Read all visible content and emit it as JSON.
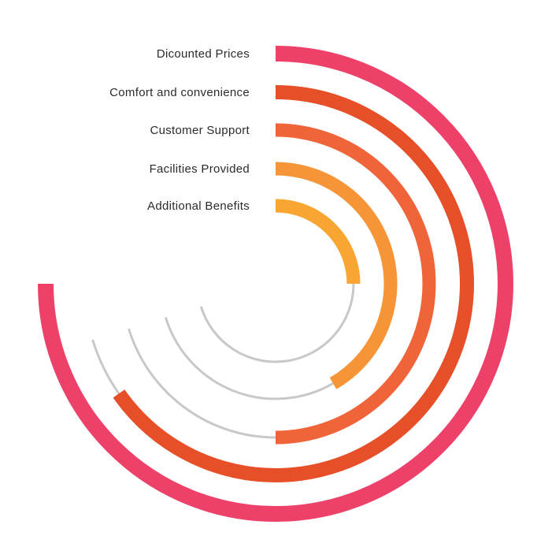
{
  "chart_data": {
    "type": "radial-bar",
    "title": "",
    "max_degrees": 270,
    "track_color": "#c8c8c8",
    "series": [
      {
        "label": "Dicounted Prices",
        "sweep_degrees": 270,
        "color": "#ee4169"
      },
      {
        "label": "Comfort and convenience",
        "sweep_degrees": 235,
        "color": "#e64f27"
      },
      {
        "label": "Customer Support",
        "sweep_degrees": 180,
        "color": "#f0643a"
      },
      {
        "label": "Facilities Provided",
        "sweep_degrees": 150,
        "color": "#f59538"
      },
      {
        "label": "Additional  Benefits",
        "sweep_degrees": 90,
        "color": "#f8a532"
      }
    ]
  }
}
